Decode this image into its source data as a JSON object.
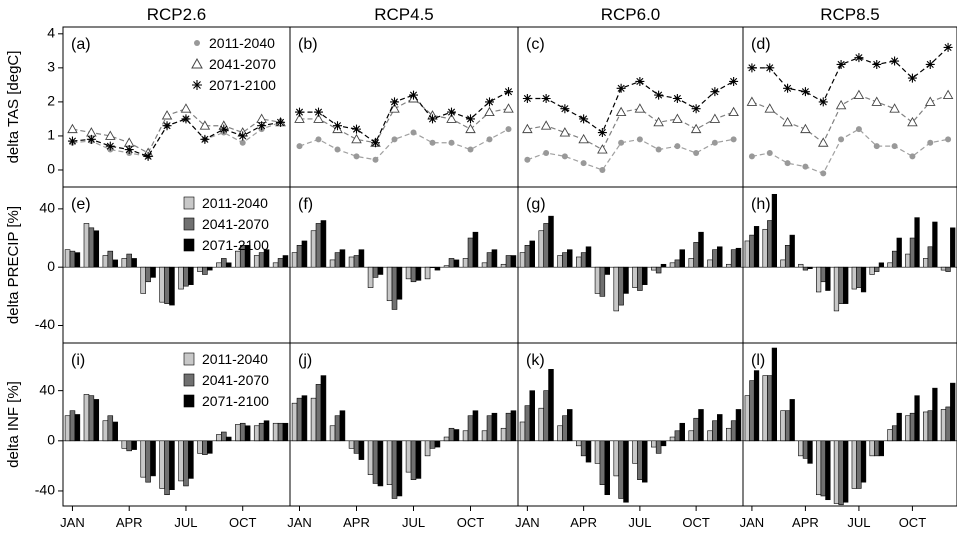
{
  "figure": {
    "columns": [
      "RCP2.6",
      "RCP4.5",
      "RCP6.0",
      "RCP8.5"
    ],
    "row_ylabels": [
      "delta TAS [degC]",
      "delta PRECIP [%]",
      "delta INF [%]"
    ],
    "month_labels": [
      "JAN",
      "APR",
      "JUL",
      "OCT"
    ],
    "periods": [
      "2011-2040",
      "2041-2070",
      "2071-2100"
    ],
    "colors": {
      "p1": "#c8c8c8",
      "p2": "#707070",
      "p3": "#000000",
      "line1": "#a0a0a0",
      "line2": "#808080",
      "line3": "#000000"
    }
  },
  "chart_data": [
    {
      "type": "line",
      "panel": "(a)",
      "column": "RCP2.6",
      "ylabel": "delta TAS [degC]",
      "ylim": [
        -0.5,
        4.2
      ],
      "yticks": [
        0,
        1,
        2,
        3,
        4
      ],
      "x": [
        "JAN",
        "FEB",
        "MAR",
        "APR",
        "MAY",
        "JUN",
        "JUL",
        "AUG",
        "SEP",
        "OCT",
        "NOV",
        "DEC"
      ],
      "legend": [
        "2011-2040",
        "2041-2070",
        "2071-2100"
      ],
      "series": [
        {
          "name": "2011-2040",
          "marker": "dot",
          "values": [
            0.8,
            0.85,
            0.6,
            0.5,
            0.4,
            1.3,
            1.5,
            0.9,
            1.1,
            0.8,
            1.2,
            1.4
          ]
        },
        {
          "name": "2041-2070",
          "marker": "triangle",
          "values": [
            1.2,
            1.1,
            1.0,
            0.8,
            0.5,
            1.6,
            1.8,
            1.3,
            1.3,
            1.1,
            1.5,
            1.4
          ]
        },
        {
          "name": "2071-2100",
          "marker": "star",
          "values": [
            0.85,
            0.9,
            0.7,
            0.6,
            0.4,
            1.3,
            1.5,
            0.9,
            1.2,
            1.0,
            1.3,
            1.4
          ]
        }
      ]
    },
    {
      "type": "line",
      "panel": "(b)",
      "column": "RCP4.5",
      "ylim": [
        -0.5,
        4.2
      ],
      "x": [
        "JAN",
        "FEB",
        "MAR",
        "APR",
        "MAY",
        "JUN",
        "JUL",
        "AUG",
        "SEP",
        "OCT",
        "NOV",
        "DEC"
      ],
      "series": [
        {
          "name": "2011-2040",
          "marker": "dot",
          "values": [
            0.7,
            0.9,
            0.6,
            0.4,
            0.3,
            0.9,
            1.1,
            0.8,
            0.8,
            0.6,
            0.9,
            1.2
          ]
        },
        {
          "name": "2041-2070",
          "marker": "triangle",
          "values": [
            1.5,
            1.5,
            1.2,
            0.9,
            0.8,
            1.8,
            2.1,
            1.6,
            1.5,
            1.2,
            1.7,
            1.8
          ]
        },
        {
          "name": "2071-2100",
          "marker": "star",
          "values": [
            1.7,
            1.7,
            1.3,
            1.2,
            0.8,
            2.0,
            2.2,
            1.5,
            1.7,
            1.5,
            2.0,
            2.3
          ]
        }
      ]
    },
    {
      "type": "line",
      "panel": "(c)",
      "column": "RCP6.0",
      "ylim": [
        -0.5,
        4.2
      ],
      "x": [
        "JAN",
        "FEB",
        "MAR",
        "APR",
        "MAY",
        "JUN",
        "JUL",
        "AUG",
        "SEP",
        "OCT",
        "NOV",
        "DEC"
      ],
      "series": [
        {
          "name": "2011-2040",
          "marker": "dot",
          "values": [
            0.3,
            0.5,
            0.4,
            0.2,
            0.0,
            0.8,
            0.9,
            0.6,
            0.7,
            0.5,
            0.8,
            0.9
          ]
        },
        {
          "name": "2041-2070",
          "marker": "triangle",
          "values": [
            1.2,
            1.3,
            1.1,
            0.9,
            0.6,
            1.7,
            1.8,
            1.4,
            1.5,
            1.2,
            1.5,
            1.7
          ]
        },
        {
          "name": "2071-2100",
          "marker": "star",
          "values": [
            2.1,
            2.1,
            1.8,
            1.5,
            1.1,
            2.4,
            2.6,
            2.2,
            2.1,
            1.8,
            2.3,
            2.6
          ]
        }
      ]
    },
    {
      "type": "line",
      "panel": "(d)",
      "column": "RCP8.5",
      "ylim": [
        -0.5,
        4.2
      ],
      "x": [
        "JAN",
        "FEB",
        "MAR",
        "APR",
        "MAY",
        "JUN",
        "JUL",
        "AUG",
        "SEP",
        "OCT",
        "NOV",
        "DEC"
      ],
      "series": [
        {
          "name": "2011-2040",
          "marker": "dot",
          "values": [
            0.4,
            0.5,
            0.2,
            0.1,
            -0.1,
            0.9,
            1.2,
            0.7,
            0.7,
            0.4,
            0.8,
            0.9
          ]
        },
        {
          "name": "2041-2070",
          "marker": "triangle",
          "values": [
            2.0,
            1.8,
            1.4,
            1.2,
            0.8,
            1.9,
            2.2,
            2.0,
            1.8,
            1.4,
            2.0,
            2.2
          ]
        },
        {
          "name": "2071-2100",
          "marker": "star",
          "values": [
            3.0,
            3.0,
            2.4,
            2.3,
            2.0,
            3.1,
            3.3,
            3.1,
            3.2,
            2.7,
            3.1,
            3.6
          ]
        }
      ]
    },
    {
      "type": "bar",
      "panel": "(e)",
      "column": "RCP2.6",
      "ylabel": "delta PRECIP [%]",
      "ylim": [
        -52,
        55
      ],
      "yticks": [
        -40,
        0,
        40
      ],
      "x": [
        "JAN",
        "FEB",
        "MAR",
        "APR",
        "MAY",
        "JUN",
        "JUL",
        "AUG",
        "SEP",
        "OCT",
        "NOV",
        "DEC"
      ],
      "legend": [
        "2011-2040",
        "2041-2070",
        "2071-2100"
      ],
      "series": [
        {
          "name": "2011-2040",
          "values": [
            12,
            30,
            8,
            6,
            -18,
            -24,
            -15,
            -3,
            3,
            11,
            8,
            3
          ]
        },
        {
          "name": "2041-2070",
          "values": [
            11,
            27,
            11,
            9,
            -10,
            -25,
            -13,
            -5,
            6,
            15,
            10,
            6
          ]
        },
        {
          "name": "2071-2100",
          "values": [
            10,
            25,
            5,
            6,
            -7,
            -26,
            -12,
            -2,
            3,
            15,
            12,
            8
          ]
        }
      ]
    },
    {
      "type": "bar",
      "panel": "(f)",
      "column": "RCP4.5",
      "ylim": [
        -52,
        55
      ],
      "x": [
        "JAN",
        "FEB",
        "MAR",
        "APR",
        "MAY",
        "JUN",
        "JUL",
        "AUG",
        "SEP",
        "OCT",
        "NOV",
        "DEC"
      ],
      "series": [
        {
          "name": "2011-2040",
          "values": [
            10,
            25,
            5,
            7,
            -14,
            -23,
            -8,
            -8,
            1,
            6,
            3,
            2
          ]
        },
        {
          "name": "2041-2070",
          "values": [
            15,
            30,
            10,
            8,
            -7,
            -29,
            -10,
            0,
            6,
            20,
            10,
            8
          ]
        },
        {
          "name": "2071-2100",
          "values": [
            18,
            32,
            12,
            12,
            -5,
            -22,
            -9,
            -2,
            5,
            24,
            12,
            8
          ]
        }
      ]
    },
    {
      "type": "bar",
      "panel": "(g)",
      "column": "RCP6.0",
      "ylim": [
        -52,
        55
      ],
      "x": [
        "JAN",
        "FEB",
        "MAR",
        "APR",
        "MAY",
        "JUN",
        "JUL",
        "AUG",
        "SEP",
        "OCT",
        "NOV",
        "DEC"
      ],
      "series": [
        {
          "name": "2011-2040",
          "values": [
            10,
            25,
            8,
            7,
            -18,
            -30,
            -14,
            -2,
            3,
            6,
            5,
            2
          ]
        },
        {
          "name": "2041-2070",
          "values": [
            15,
            30,
            10,
            10,
            -20,
            -26,
            -16,
            -4,
            5,
            17,
            12,
            12
          ]
        },
        {
          "name": "2071-2100",
          "values": [
            18,
            35,
            12,
            14,
            -5,
            -18,
            -12,
            2,
            12,
            24,
            14,
            13
          ]
        }
      ]
    },
    {
      "type": "bar",
      "panel": "(h)",
      "column": "RCP8.5",
      "ylim": [
        -52,
        55
      ],
      "x": [
        "JAN",
        "FEB",
        "MAR",
        "APR",
        "MAY",
        "JUN",
        "JUL",
        "AUG",
        "SEP",
        "OCT",
        "NOV",
        "DEC"
      ],
      "series": [
        {
          "name": "2011-2040",
          "values": [
            18,
            26,
            5,
            2,
            -17,
            -30,
            -15,
            -5,
            3,
            9,
            6,
            -2
          ]
        },
        {
          "name": "2041-2070",
          "values": [
            22,
            32,
            15,
            -2,
            -10,
            -25,
            -14,
            -3,
            11,
            20,
            14,
            -3
          ]
        },
        {
          "name": "2071-2100",
          "values": [
            28,
            50,
            22,
            -1,
            -16,
            -25,
            -17,
            3,
            20,
            34,
            31,
            27
          ]
        }
      ]
    },
    {
      "type": "bar",
      "panel": "(i)",
      "column": "RCP2.6",
      "ylabel": "delta INF [%]",
      "ylim": [
        -52,
        78
      ],
      "yticks": [
        -40,
        0,
        40
      ],
      "x": [
        "JAN",
        "FEB",
        "MAR",
        "APR",
        "MAY",
        "JUN",
        "JUL",
        "AUG",
        "SEP",
        "OCT",
        "NOV",
        "DEC"
      ],
      "legend": [
        "2011-2040",
        "2041-2070",
        "2071-2100"
      ],
      "series": [
        {
          "name": "2011-2040",
          "values": [
            20,
            37,
            16,
            -6,
            -29,
            -38,
            -32,
            -10,
            5,
            13,
            12,
            14
          ]
        },
        {
          "name": "2041-2070",
          "values": [
            24,
            36,
            20,
            -8,
            -33,
            -43,
            -36,
            -11,
            7,
            14,
            14,
            14
          ]
        },
        {
          "name": "2071-2100",
          "values": [
            21,
            33,
            15,
            -7,
            -28,
            -39,
            -30,
            -10,
            3,
            12,
            16,
            14
          ]
        }
      ]
    },
    {
      "type": "bar",
      "panel": "(j)",
      "column": "RCP4.5",
      "ylim": [
        -52,
        78
      ],
      "x": [
        "JAN",
        "FEB",
        "MAR",
        "APR",
        "MAY",
        "JUN",
        "JUL",
        "AUG",
        "SEP",
        "OCT",
        "NOV",
        "DEC"
      ],
      "series": [
        {
          "name": "2011-2040",
          "values": [
            30,
            34,
            12,
            -6,
            -27,
            -35,
            -25,
            -12,
            3,
            8,
            8,
            10
          ]
        },
        {
          "name": "2041-2070",
          "values": [
            34,
            45,
            20,
            -10,
            -34,
            -46,
            -31,
            -6,
            10,
            20,
            20,
            22
          ]
        },
        {
          "name": "2071-2100",
          "values": [
            36,
            52,
            24,
            -15,
            -36,
            -44,
            -30,
            -5,
            9,
            24,
            22,
            24
          ]
        }
      ]
    },
    {
      "type": "bar",
      "panel": "(k)",
      "column": "RCP6.0",
      "ylim": [
        -52,
        78
      ],
      "x": [
        "JAN",
        "FEB",
        "MAR",
        "APR",
        "MAY",
        "JUN",
        "JUL",
        "AUG",
        "SEP",
        "OCT",
        "NOV",
        "DEC"
      ],
      "series": [
        {
          "name": "2011-2040",
          "values": [
            15,
            26,
            12,
            -4,
            -18,
            -28,
            -18,
            -5,
            3,
            8,
            8,
            10
          ]
        },
        {
          "name": "2041-2070",
          "values": [
            28,
            40,
            20,
            -12,
            -35,
            -46,
            -31,
            -10,
            8,
            18,
            16,
            16
          ]
        },
        {
          "name": "2071-2100",
          "values": [
            40,
            57,
            25,
            -17,
            -43,
            -49,
            -33,
            -4,
            14,
            25,
            21,
            25
          ]
        }
      ]
    },
    {
      "type": "bar",
      "panel": "(l)",
      "column": "RCP8.5",
      "ylim": [
        -52,
        78
      ],
      "x": [
        "JAN",
        "FEB",
        "MAR",
        "APR",
        "MAY",
        "JUN",
        "JUL",
        "AUG",
        "SEP",
        "OCT",
        "NOV",
        "DEC"
      ],
      "series": [
        {
          "name": "2011-2040",
          "values": [
            36,
            52,
            24,
            -12,
            -43,
            -50,
            -38,
            -12,
            9,
            20,
            23,
            25
          ]
        },
        {
          "name": "2041-2070",
          "values": [
            48,
            52,
            24,
            -14,
            -44,
            -51,
            -38,
            -12,
            12,
            22,
            24,
            27
          ]
        },
        {
          "name": "2071-2100",
          "values": [
            56,
            74,
            33,
            -18,
            -47,
            -49,
            -33,
            -12,
            22,
            36,
            42,
            46
          ]
        }
      ]
    }
  ]
}
